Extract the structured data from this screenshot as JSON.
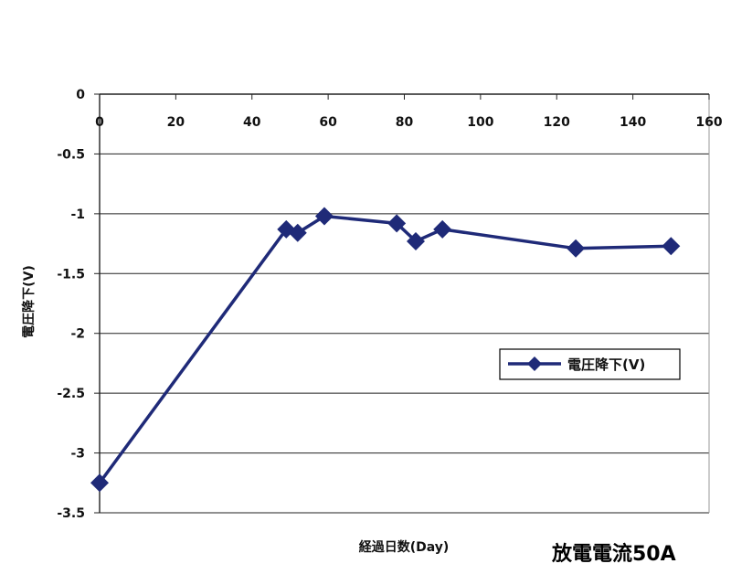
{
  "chart_data": {
    "type": "line",
    "title": "",
    "xlabel": "経過日数(Day)",
    "ylabel": "電圧降下(V)",
    "xlim": [
      0,
      160
    ],
    "ylim": [
      -3.5,
      0
    ],
    "x_ticks": [
      0,
      20,
      40,
      60,
      80,
      100,
      120,
      140,
      160
    ],
    "y_ticks": [
      0,
      -0.5,
      -1,
      -1.5,
      -2,
      -2.5,
      -3,
      -3.5
    ],
    "y_tick_labels": [
      "0",
      "-0.5",
      "-1",
      "-1.5",
      "-2",
      "-2.5",
      "-3",
      "-3.5"
    ],
    "x_axis_position": "top",
    "grid": "horizontal",
    "legend_position": "right",
    "series": [
      {
        "name": "電圧降下(V)",
        "color": "#1f2a78",
        "marker": "diamond",
        "x": [
          0,
          49,
          52,
          59,
          78,
          83,
          90,
          125,
          150
        ],
        "y": [
          -3.25,
          -1.13,
          -1.16,
          -1.02,
          -1.08,
          -1.23,
          -1.13,
          -1.29,
          -1.27
        ]
      }
    ]
  },
  "annotation": "放電電流50A"
}
